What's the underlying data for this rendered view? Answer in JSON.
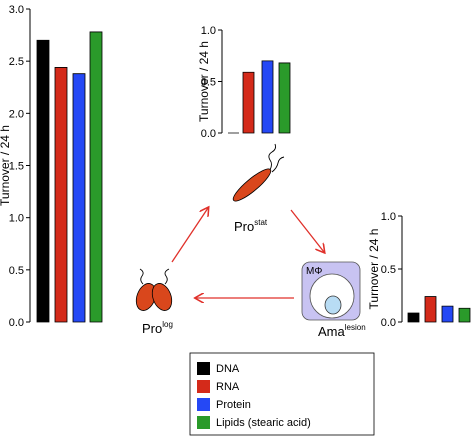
{
  "chart_data": [
    {
      "type": "bar",
      "ylabel": "Turnover / 24 h",
      "values": [
        2.7,
        2.44,
        2.38,
        2.78
      ],
      "ylim": [
        0,
        3
      ],
      "yticks": [
        {
          "value": 0,
          "label": "0.0"
        },
        {
          "value": 0.5,
          "label": "0.5"
        },
        {
          "value": 1,
          "label": "1.0"
        },
        {
          "value": 1.5,
          "label": "1.5"
        },
        {
          "value": 2,
          "label": "2.0"
        },
        {
          "value": 2.5,
          "label": "2.5"
        },
        {
          "value": 3,
          "label": "3.0"
        }
      ]
    },
    {
      "type": "bar",
      "ylabel": "Turnover / 24 h",
      "values": [
        0,
        0.59,
        0.7,
        0.68
      ],
      "ylim": [
        0,
        1
      ],
      "yticks": [
        {
          "value": 0,
          "label": "0.0"
        },
        {
          "value": 0.5,
          "label": "0.5"
        },
        {
          "value": 1,
          "label": "1.0"
        }
      ]
    },
    {
      "type": "bar",
      "ylabel": "Turnover / 24 h",
      "values": [
        0.085,
        0.24,
        0.15,
        0.13
      ],
      "ylim": [
        0,
        1
      ],
      "yticks": [
        {
          "value": 0,
          "label": "0.0"
        },
        {
          "value": 0.5,
          "label": "0.5"
        },
        {
          "value": 1,
          "label": "1.0"
        }
      ]
    }
  ],
  "legend": [
    {
      "name": "DNA",
      "color": "#000000"
    },
    {
      "name": "RNA",
      "color": "#d42a1a"
    },
    {
      "name": "Protein",
      "color": "#2548f5"
    },
    {
      "name": "Lipids (stearic acid)",
      "color": "#2a9a2a"
    }
  ],
  "diagram": {
    "stat": {
      "base": "Pro",
      "sup": "stat"
    },
    "log": {
      "base": "Pro",
      "sup": "log"
    },
    "lesion": {
      "base": "Ama",
      "sup": "lesion"
    },
    "macrophage": "MΦ"
  }
}
